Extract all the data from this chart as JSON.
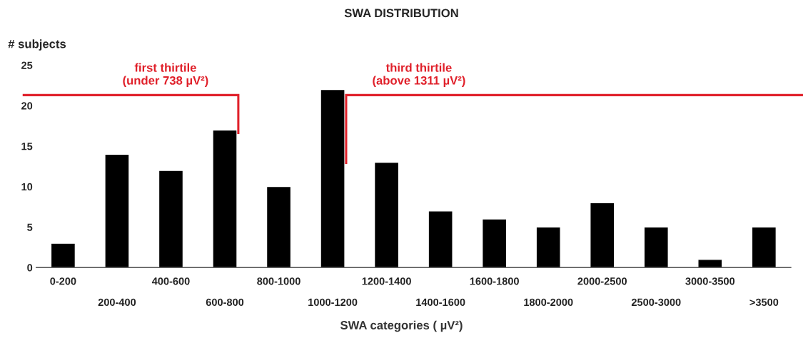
{
  "chart_data": {
    "type": "bar",
    "title": "SWA DISTRIBUTION",
    "xlabel": "SWA categories ( µV²)",
    "ylabel": "# subjects",
    "categories": [
      "0-200",
      "200-400",
      "400-600",
      "600-800",
      "800-1000",
      "1000-1200",
      "1200-1400",
      "1400-1600",
      "1600-1800",
      "1800-2000",
      "2000-2500",
      "2500-3000",
      "3000-3500",
      ">3500"
    ],
    "values": [
      3,
      14,
      12,
      17,
      10,
      22,
      13,
      7,
      6,
      5,
      8,
      5,
      1,
      5
    ],
    "color": "#000000",
    "ylim": [
      0,
      25
    ],
    "yticks": [
      0,
      5,
      10,
      15,
      20,
      25
    ],
    "grid": false,
    "legend": false,
    "annotations": [
      "first thirtile\n(under 738 µV²)",
      "third thirtile\n(above 1311 µV²)"
    ]
  }
}
